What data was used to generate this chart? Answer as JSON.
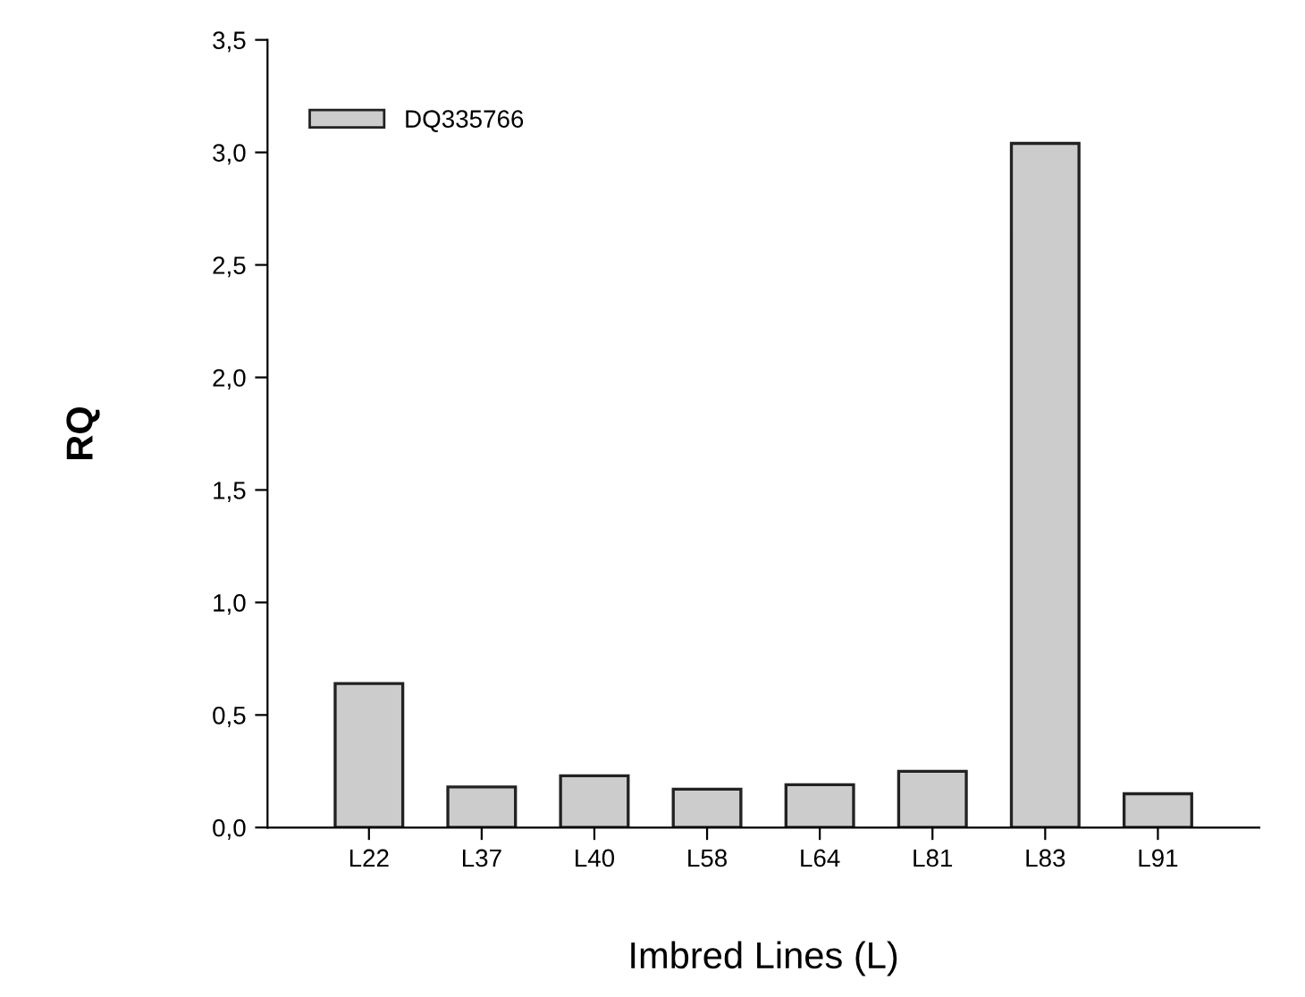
{
  "chart_data": {
    "type": "bar",
    "xlabel": "Imbred Lines (L)",
    "ylabel": "RQ",
    "categories": [
      "L22",
      "L37",
      "L40",
      "L58",
      "L64",
      "L81",
      "L83",
      "L91"
    ],
    "series": [
      {
        "name": "DQ335766",
        "color": "#cccccc",
        "values": [
          0.64,
          0.18,
          0.23,
          0.17,
          0.19,
          0.25,
          3.04,
          0.15
        ]
      }
    ],
    "ylim": [
      0,
      3.5
    ],
    "yticks": [
      {
        "value": 0,
        "label": "0,0"
      },
      {
        "value": 0.5,
        "label": "0,5"
      },
      {
        "value": 1,
        "label": "1,0"
      },
      {
        "value": 1.5,
        "label": "1,5"
      },
      {
        "value": 2,
        "label": "2,0"
      },
      {
        "value": 2.5,
        "label": "2,5"
      },
      {
        "value": 3,
        "label": "3,0"
      },
      {
        "value": 3.5,
        "label": "3,5"
      }
    ],
    "legend": "top left",
    "grid": false
  }
}
